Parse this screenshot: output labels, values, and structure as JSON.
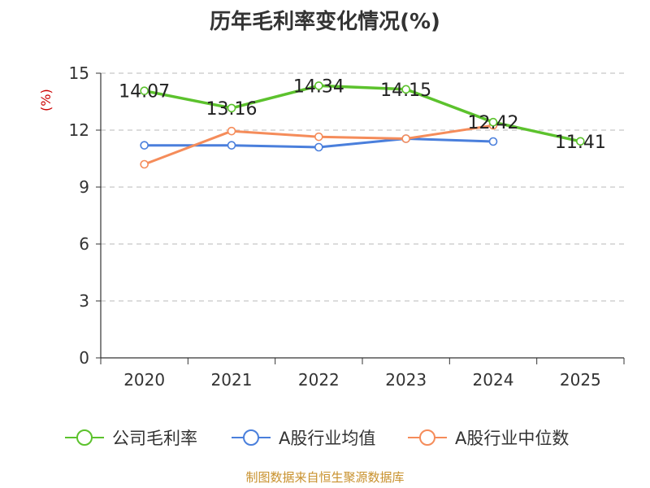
{
  "chart_data": {
    "type": "line",
    "title": "历年毛利率变化情况(%)",
    "ylabel": "(%)",
    "xlabel": "",
    "categories": [
      "2020",
      "2021",
      "2022",
      "2023",
      "2024",
      "2025"
    ],
    "ylim": [
      0,
      15
    ],
    "yticks": [
      0,
      3,
      6,
      9,
      12,
      15
    ],
    "grid": true,
    "legend_position": "bottom",
    "series": [
      {
        "name": "公司毛利率",
        "color": "#5cc22d",
        "values": [
          14.07,
          13.16,
          14.34,
          14.15,
          12.42,
          11.41
        ],
        "labels": [
          "14.07",
          "13.16",
          "14.34",
          "14.15",
          "12.42",
          "11.41"
        ]
      },
      {
        "name": "A股行业均值",
        "color": "#4a7fdc",
        "values": [
          11.2,
          11.2,
          11.1,
          11.55,
          11.4,
          null
        ]
      },
      {
        "name": "A股行业中位数",
        "color": "#f58c5a",
        "values": [
          10.2,
          11.95,
          11.65,
          11.55,
          12.25,
          null
        ]
      }
    ]
  },
  "source_text": "制图数据来自恒生聚源数据库"
}
